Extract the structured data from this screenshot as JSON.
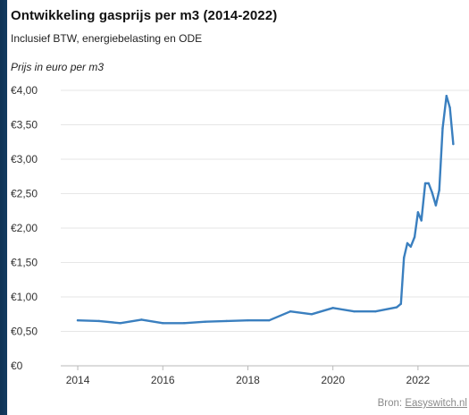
{
  "chart_data": {
    "type": "line",
    "title": "Ontwikkeling gasprijs per m3 (2014-2022)",
    "subtitle": "Inclusief BTW, energiebelasting en ODE",
    "ylabel": "Prijs in euro per m3",
    "xlabel": "",
    "ylim": [
      0,
      4.0
    ],
    "xlim": [
      2013.6,
      2023.2
    ],
    "yticks": [
      0,
      0.5,
      1.0,
      1.5,
      2.0,
      2.5,
      3.0,
      3.5,
      4.0
    ],
    "ytick_labels": [
      "€0",
      "€0,50",
      "€1,00",
      "€1,50",
      "€2,00",
      "€2,50",
      "€3,00",
      "€3,50",
      "€4,00"
    ],
    "xticks": [
      2014,
      2016,
      2018,
      2020,
      2022
    ],
    "xtick_labels": [
      "2014",
      "2016",
      "2018",
      "2020",
      "2022"
    ],
    "grid": "horizontal",
    "line_color": "#3a7fbf",
    "series": [
      {
        "name": "",
        "x": [
          2014.0,
          2014.5,
          2015.0,
          2015.5,
          2016.0,
          2016.5,
          2017.0,
          2017.5,
          2018.0,
          2018.5,
          2019.0,
          2019.5,
          2020.0,
          2020.5,
          2021.0,
          2021.5,
          2021.6,
          2021.67,
          2021.75,
          2021.83,
          2021.92,
          2022.0,
          2022.08,
          2022.17,
          2022.25,
          2022.33,
          2022.42,
          2022.5,
          2022.58,
          2022.67,
          2022.75,
          2022.83
        ],
        "values": [
          0.66,
          0.65,
          0.62,
          0.67,
          0.62,
          0.62,
          0.64,
          0.65,
          0.66,
          0.66,
          0.79,
          0.75,
          0.84,
          0.79,
          0.79,
          0.85,
          0.9,
          1.57,
          1.78,
          1.73,
          1.87,
          2.23,
          2.11,
          2.65,
          2.65,
          2.52,
          2.33,
          2.55,
          3.45,
          3.92,
          3.75,
          3.22
        ]
      }
    ]
  },
  "source": {
    "prefix": "Bron:",
    "link_text": "Easyswitch.nl"
  }
}
